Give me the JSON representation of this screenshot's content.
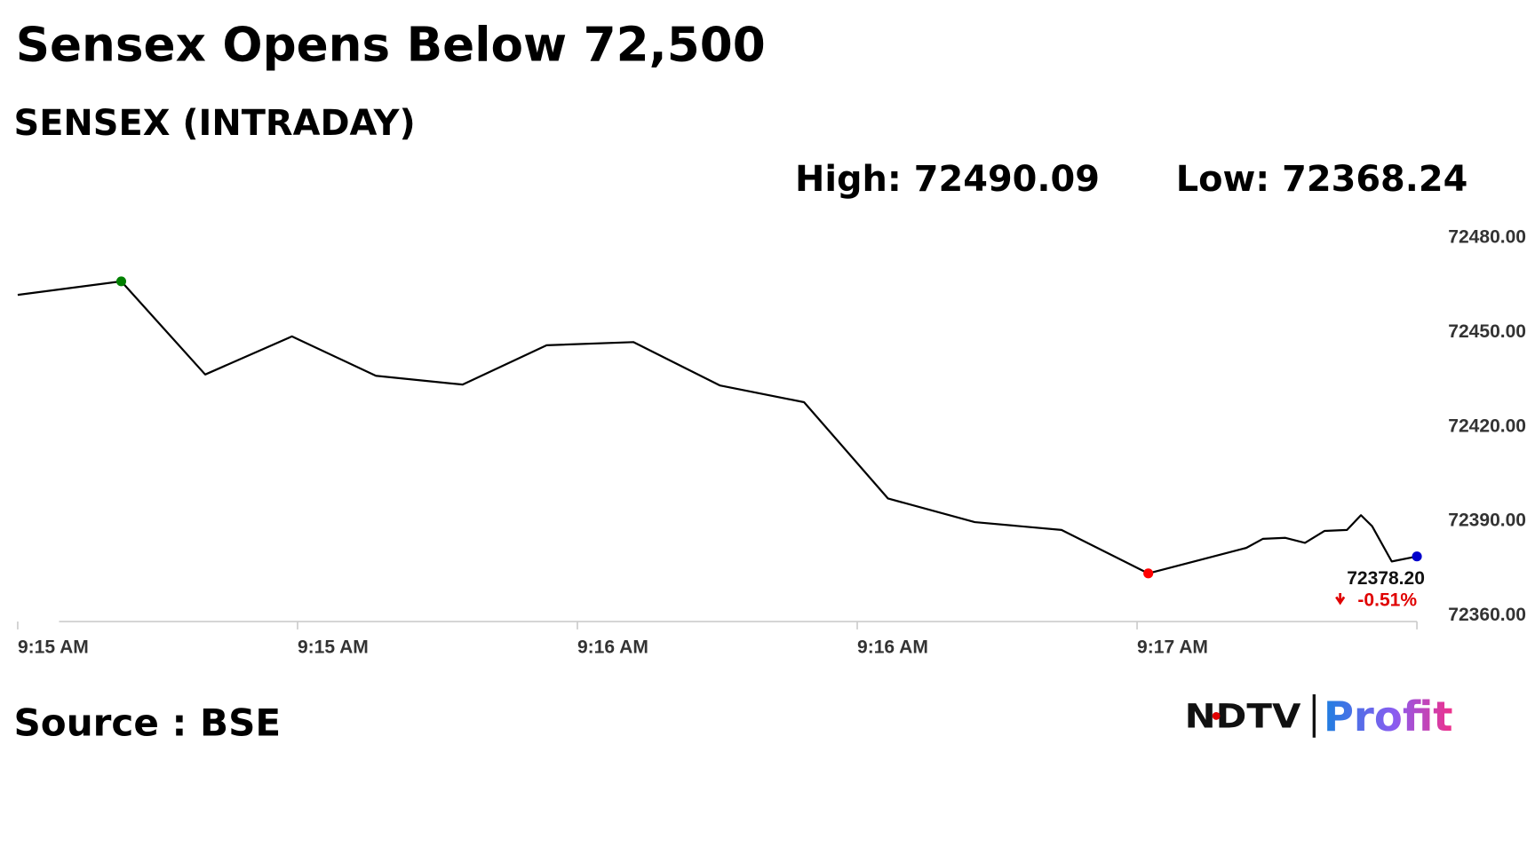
{
  "chart_data": {
    "type": "line",
    "title": "Sensex Opens Below 72,500",
    "subtitle": "SENSEX (INTRADAY)",
    "high_label": "High: 72490.09",
    "low_label": "Low: 72368.24",
    "source": "Source : BSE",
    "logo": {
      "left": "NDTV",
      "right": "Profit"
    },
    "last_value_label": "72378.20",
    "change_label": "-0.51%",
    "change_color": "#e00000",
    "x": [
      0,
      0.37,
      0.67,
      0.98,
      1.28,
      1.59,
      1.89,
      2.2,
      2.51,
      2.81,
      3.11,
      3.42,
      3.73,
      4.04,
      4.39,
      4.45,
      4.53,
      4.6,
      4.67,
      4.75,
      4.8,
      4.84,
      4.91,
      5.0
    ],
    "series": [
      {
        "name": "SENSEX",
        "color": "#000000",
        "values": [
          72461.3,
          72465.6,
          72436.0,
          72448.1,
          72435.6,
          72432.8,
          72445.3,
          72446.3,
          72432.5,
          72427.2,
          72396.6,
          72389.1,
          72386.6,
          72372.8,
          72380.9,
          72383.8,
          72384.1,
          72382.5,
          72386.3,
          72386.6,
          72391.3,
          72387.8,
          72376.6,
          72378.2
        ]
      }
    ],
    "markers": [
      {
        "index": 1,
        "color": "#008000"
      },
      {
        "index": 13,
        "color": "#ff0000"
      },
      {
        "index": 23,
        "color": "#0000cc"
      }
    ],
    "xlim": [
      0,
      5
    ],
    "xticks": [
      {
        "value": 0,
        "label": "9:15 AM"
      },
      {
        "value": 1,
        "label": "9:15 AM"
      },
      {
        "value": 2,
        "label": "9:16 AM"
      },
      {
        "value": 3,
        "label": "9:16 AM"
      },
      {
        "value": 4,
        "label": "9:17 AM"
      }
    ],
    "ylim": [
      72357.5,
      72480
    ],
    "yticks": [
      {
        "value": 72360,
        "label": "72360.00"
      },
      {
        "value": 72390,
        "label": "72390.00"
      },
      {
        "value": 72420,
        "label": "72420.00"
      },
      {
        "value": 72450,
        "label": "72450.00"
      },
      {
        "value": 72480,
        "label": "72480.00"
      }
    ],
    "grid": false
  }
}
